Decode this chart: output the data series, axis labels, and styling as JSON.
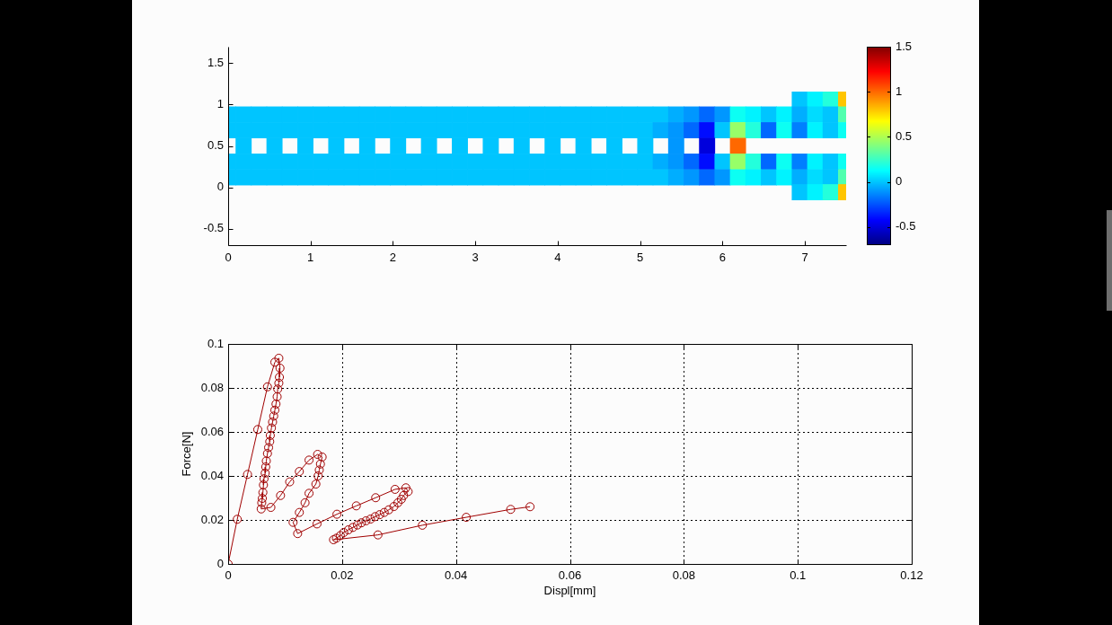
{
  "chart_data": [
    {
      "type": "scatter",
      "marker": "square",
      "x": [
        6.9375,
        7.125,
        7.3125,
        7.5,
        0,
        0.1875,
        0.375,
        0.5625,
        0.75,
        0.9375,
        1.125,
        1.3125,
        1.5,
        1.6875,
        1.875,
        2.0625,
        2.25,
        2.4375,
        2.625,
        2.8125,
        3,
        3.1875,
        3.375,
        3.5625,
        3.75,
        3.9375,
        4.125,
        4.3125,
        4.5,
        4.6875,
        4.875,
        5.0625,
        5.25,
        5.4375,
        5.625,
        5.8125,
        6,
        6.1875,
        6.375,
        6.5625,
        6.75,
        6.9375,
        7.125,
        7.3125,
        7.5,
        0,
        0.1875,
        0.375,
        0.5625,
        0.75,
        0.9375,
        1.125,
        1.3125,
        1.5,
        1.6875,
        1.875,
        2.0625,
        2.25,
        2.4375,
        2.625,
        2.8125,
        3,
        3.1875,
        3.375,
        3.5625,
        3.75,
        3.9375,
        4.125,
        4.3125,
        4.5,
        4.6875,
        4.875,
        5.0625,
        5.25,
        5.4375,
        5.625,
        5.8125,
        6,
        6.1875,
        6.375,
        6.5625,
        6.75,
        6.9375,
        7.125,
        7.3125,
        7.5,
        0.1875,
        0.5625,
        0.9375,
        1.3125,
        1.6875,
        2.0625,
        2.4375,
        2.8125,
        3.1875,
        3.5625,
        3.9375,
        4.3125,
        4.6875,
        5.0625,
        5.4375,
        5.8125,
        6.1875,
        0,
        0.1875,
        0.375,
        0.5625,
        0.75,
        0.9375,
        1.125,
        1.3125,
        1.5,
        1.6875,
        1.875,
        2.0625,
        2.25,
        2.4375,
        2.625,
        2.8125,
        3,
        3.1875,
        3.375,
        3.5625,
        3.75,
        3.9375,
        4.125,
        4.3125,
        4.5,
        4.6875,
        4.875,
        5.0625,
        5.25,
        5.4375,
        5.625,
        5.8125,
        6,
        6.1875,
        6.375,
        6.5625,
        6.75,
        6.9375,
        7.125,
        7.3125,
        7.5,
        0,
        0.1875,
        0.375,
        0.5625,
        0.75,
        0.9375,
        1.125,
        1.3125,
        1.5,
        1.6875,
        1.875,
        2.0625,
        2.25,
        2.4375,
        2.625,
        2.8125,
        3,
        3.1875,
        3.375,
        3.5625,
        3.75,
        3.9375,
        4.125,
        4.3125,
        4.5,
        4.6875,
        4.875,
        5.0625,
        5.25,
        5.4375,
        5.625,
        5.8125,
        6,
        6.1875,
        6.375,
        6.5625,
        6.75,
        6.9375,
        7.125,
        7.3125,
        7.5,
        6.9375,
        7.125,
        7.3125,
        7.5
      ],
      "values": [
        1.06,
        1.06,
        1.06,
        1.06,
        0.88,
        0.88,
        0.88,
        0.88,
        0.88,
        0.88,
        0.88,
        0.88,
        0.88,
        0.88,
        0.88,
        0.88,
        0.88,
        0.88,
        0.88,
        0.88,
        0.88,
        0.88,
        0.88,
        0.88,
        0.88,
        0.88,
        0.88,
        0.88,
        0.88,
        0.88,
        0.88,
        0.88,
        0.88,
        0.88,
        0.88,
        0.88,
        0.88,
        0.88,
        0.88,
        0.88,
        0.88,
        0.88,
        0.88,
        0.88,
        0.88,
        0.69,
        0.69,
        0.69,
        0.69,
        0.69,
        0.69,
        0.69,
        0.69,
        0.69,
        0.69,
        0.69,
        0.69,
        0.69,
        0.69,
        0.69,
        0.69,
        0.69,
        0.69,
        0.69,
        0.69,
        0.69,
        0.69,
        0.69,
        0.69,
        0.69,
        0.69,
        0.69,
        0.69,
        0.69,
        0.69,
        0.69,
        0.69,
        0.69,
        0.69,
        0.69,
        0.69,
        0.69,
        0.69,
        0.69,
        0.69,
        0.69,
        0.5,
        0.5,
        0.5,
        0.5,
        0.5,
        0.5,
        0.5,
        0.5,
        0.5,
        0.5,
        0.5,
        0.5,
        0.5,
        0.5,
        0.5,
        0.5,
        0.5,
        0.31,
        0.31,
        0.31,
        0.31,
        0.31,
        0.31,
        0.31,
        0.31,
        0.31,
        0.31,
        0.31,
        0.31,
        0.31,
        0.31,
        0.31,
        0.31,
        0.31,
        0.31,
        0.31,
        0.31,
        0.31,
        0.31,
        0.31,
        0.31,
        0.31,
        0.31,
        0.31,
        0.31,
        0.31,
        0.31,
        0.31,
        0.31,
        0.31,
        0.31,
        0.31,
        0.31,
        0.31,
        0.31,
        0.31,
        0.31,
        0.31,
        0.12,
        0.12,
        0.12,
        0.12,
        0.12,
        0.12,
        0.12,
        0.12,
        0.12,
        0.12,
        0.12,
        0.12,
        0.12,
        0.12,
        0.12,
        0.12,
        0.12,
        0.12,
        0.12,
        0.12,
        0.12,
        0.12,
        0.12,
        0.12,
        0.12,
        0.12,
        0.12,
        0.12,
        0.12,
        0.12,
        0.12,
        0.12,
        0.12,
        0.12,
        0.12,
        0.12,
        0.12,
        0.12,
        0.12,
        0.12,
        0.12,
        -0.06,
        -0.06,
        -0.06,
        -0.06
      ],
      "cvalues": [
        0,
        0.1,
        0.2,
        0.8,
        0,
        0,
        0,
        0,
        0,
        0,
        0,
        0,
        0,
        0,
        0,
        0,
        0,
        0,
        0,
        0,
        0,
        0,
        0,
        0,
        0,
        0,
        0,
        0,
        0,
        0,
        0,
        0,
        0,
        -0.05,
        -0.1,
        -0.2,
        -0.1,
        0.15,
        0.1,
        0,
        0.1,
        -0.05,
        0.05,
        0,
        0.3,
        0,
        0,
        0,
        0,
        0,
        0,
        0,
        0,
        0,
        0,
        0,
        0,
        0,
        0,
        0,
        0,
        0,
        0,
        0,
        0,
        0,
        0,
        0,
        0,
        0,
        0,
        0,
        0,
        -0.05,
        -0.1,
        -0.2,
        -0.4,
        0,
        0.45,
        0.2,
        -0.2,
        0.15,
        -0.15,
        0.1,
        0,
        0.15,
        0,
        0,
        0,
        0,
        0,
        0,
        0,
        0,
        0,
        0,
        0,
        0,
        0,
        0,
        -0.1,
        -0.5,
        1,
        0,
        0,
        0,
        0,
        0,
        0,
        0,
        0,
        0,
        0,
        0,
        0,
        0,
        0,
        0,
        0,
        0,
        0,
        0,
        0,
        0,
        0,
        0,
        0,
        0,
        0,
        0,
        0,
        -0.05,
        -0.1,
        -0.2,
        -0.4,
        0,
        0.45,
        0.2,
        -0.2,
        0.15,
        -0.15,
        0.1,
        0,
        0.15,
        0,
        0,
        0,
        0,
        0,
        0,
        0,
        0,
        0,
        0,
        0,
        0,
        0,
        0,
        0,
        0,
        0,
        0,
        0,
        0,
        0,
        0,
        0,
        0,
        0,
        0,
        0,
        0,
        0,
        -0.05,
        -0.1,
        -0.2,
        -0.1,
        0.15,
        0.1,
        0,
        0.1,
        -0.05,
        0.05,
        0,
        0.3,
        0,
        0.1,
        0.2,
        0.8
      ],
      "xlim": [
        0,
        7.5
      ],
      "xticks": [
        0,
        1,
        2,
        3,
        4,
        5,
        6,
        7
      ],
      "ylim": [
        -0.7,
        1.7
      ],
      "yticks": [
        -0.5,
        0,
        0.5,
        1,
        1.5
      ],
      "clim": [
        -0.7,
        1.5
      ],
      "cticks": [
        -0.5,
        0,
        0.5,
        1,
        1.5
      ]
    },
    {
      "type": "line",
      "xlabel": "Displ[mm]",
      "ylabel": "Force[N]",
      "x": [
        0,
        0.0016,
        0.0034,
        0.0052,
        0.0069,
        0.0082,
        0.0089,
        0.0091,
        0.009,
        0.0089,
        0.0087,
        0.0086,
        0.0084,
        0.0082,
        0.008,
        0.0078,
        0.0076,
        0.0074,
        0.0073,
        0.0071,
        0.0069,
        0.0067,
        0.0066,
        0.0065,
        0.0063,
        0.0062,
        0.0061,
        0.006,
        0.0059,
        0.0058,
        0.0075,
        0.0092,
        0.0108,
        0.0125,
        0.0142,
        0.0157,
        0.0165,
        0.0162,
        0.016,
        0.0158,
        0.0154,
        0.0142,
        0.0135,
        0.0125,
        0.0114,
        0.0122,
        0.0156,
        0.0191,
        0.0225,
        0.0259,
        0.0293,
        0.0312,
        0.0316,
        0.0308,
        0.0304,
        0.0298,
        0.0291,
        0.0282,
        0.0274,
        0.0266,
        0.0258,
        0.025,
        0.0242,
        0.0234,
        0.0227,
        0.0219,
        0.0211,
        0.0203,
        0.0197,
        0.019,
        0.0185,
        0.0263,
        0.0341,
        0.0418,
        0.0496,
        0.053
      ],
      "values": [
        0,
        0.0203,
        0.0407,
        0.0611,
        0.0805,
        0.0917,
        0.0935,
        0.089,
        0.0849,
        0.0822,
        0.0795,
        0.076,
        0.0727,
        0.0699,
        0.0672,
        0.0645,
        0.0618,
        0.0584,
        0.0556,
        0.0529,
        0.0502,
        0.0468,
        0.0441,
        0.0413,
        0.0387,
        0.0359,
        0.0325,
        0.0298,
        0.0278,
        0.025,
        0.0257,
        0.0311,
        0.0373,
        0.042,
        0.0472,
        0.0498,
        0.0486,
        0.0454,
        0.0427,
        0.04,
        0.0363,
        0.0321,
        0.0278,
        0.0234,
        0.0189,
        0.0138,
        0.0182,
        0.0226,
        0.0264,
        0.0301,
        0.0339,
        0.0346,
        0.0329,
        0.0311,
        0.0294,
        0.0278,
        0.0261,
        0.0246,
        0.0234,
        0.0224,
        0.0215,
        0.0204,
        0.0196,
        0.0187,
        0.0177,
        0.0166,
        0.0155,
        0.0143,
        0.0129,
        0.0117,
        0.011,
        0.0132,
        0.0176,
        0.0212,
        0.0248,
        0.026
      ],
      "color": "#a00000",
      "marker": "circle",
      "xlim": [
        0,
        0.12
      ],
      "xticks": [
        0,
        0.02,
        0.04,
        0.06,
        0.08,
        0.1,
        0.12
      ],
      "ylim": [
        0,
        0.1
      ],
      "yticks": [
        0,
        0.02,
        0.04,
        0.06,
        0.08,
        0.1
      ],
      "grid": true
    }
  ]
}
